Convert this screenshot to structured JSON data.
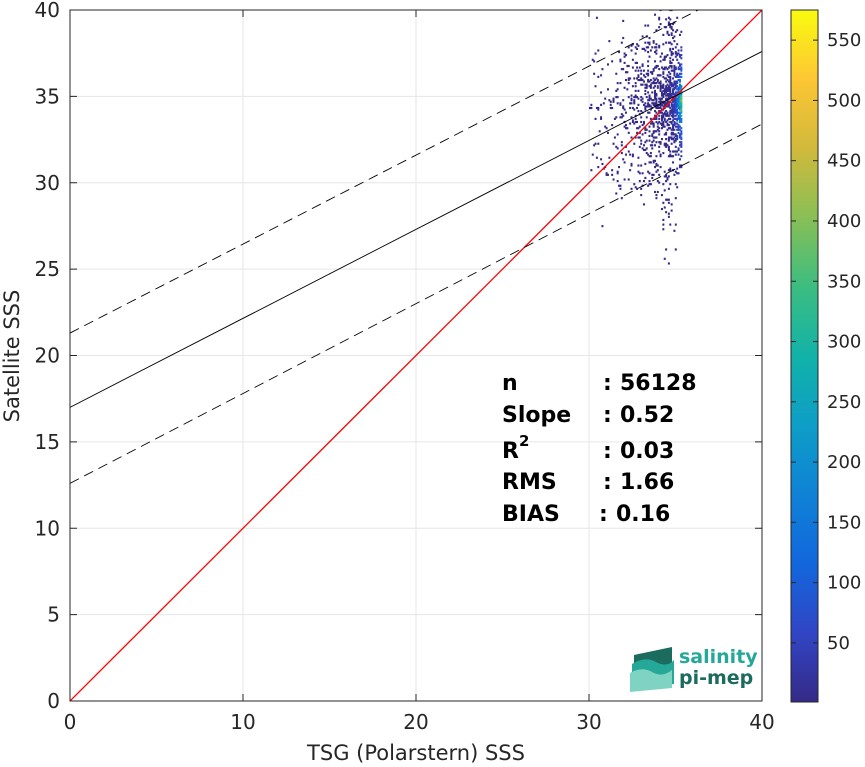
{
  "chart_data": {
    "type": "heatmap",
    "xlabel": "TSG (Polarstern) SSS",
    "ylabel": "Satellite SSS",
    "xlim": [
      0,
      40
    ],
    "ylim": [
      0,
      40
    ],
    "x_ticks": [
      0,
      10,
      20,
      30,
      40
    ],
    "y_ticks": [
      0,
      5,
      10,
      15,
      20,
      25,
      30,
      35,
      40
    ],
    "grid": true,
    "colorbar": {
      "range": [
        1,
        575
      ],
      "ticks": [
        50,
        100,
        150,
        200,
        250,
        300,
        350,
        400,
        450,
        500,
        550
      ],
      "colormap": "parula"
    },
    "lines": [
      {
        "kind": "identity",
        "color": "#ff0000",
        "x": [
          0,
          40
        ],
        "y": [
          0,
          40
        ]
      },
      {
        "kind": "regression",
        "color": "#000000",
        "style": "solid",
        "x": [
          0,
          40
        ],
        "y": [
          17.0,
          37.6
        ]
      },
      {
        "kind": "upper-bound",
        "color": "#000000",
        "style": "dashed",
        "x": [
          0,
          40
        ],
        "y": [
          21.3,
          41.9
        ]
      },
      {
        "kind": "lower-bound",
        "color": "#000000",
        "style": "dashed",
        "x": [
          0,
          40
        ],
        "y": [
          12.6,
          33.4
        ]
      }
    ],
    "density_region": {
      "x_range": [
        30.0,
        35.3
      ],
      "y_range": [
        25.3,
        40.0
      ],
      "peak": {
        "x": 35.0,
        "y": 35.0,
        "count": 575
      }
    },
    "stats": [
      {
        "label": "n",
        "sep": ":",
        "value": "56128"
      },
      {
        "label": "Slope",
        "sep": ":",
        "value": "0.52"
      },
      {
        "label": "R",
        "sup": "2",
        "sep": ":",
        "value": "0.03"
      },
      {
        "label": "RMS",
        "sep": ":",
        "value": "1.66"
      },
      {
        "label": "BIAS",
        "sep": ":",
        "value": "0.16"
      }
    ]
  },
  "logo": {
    "line1": "salinity",
    "line2": "pi-mep"
  },
  "colors": {
    "identity": "#ff0000",
    "fit": "#000000",
    "grid": "#e6e6e6",
    "logo_primary": "#25a898",
    "logo_secondary": "#1b6b5e"
  }
}
